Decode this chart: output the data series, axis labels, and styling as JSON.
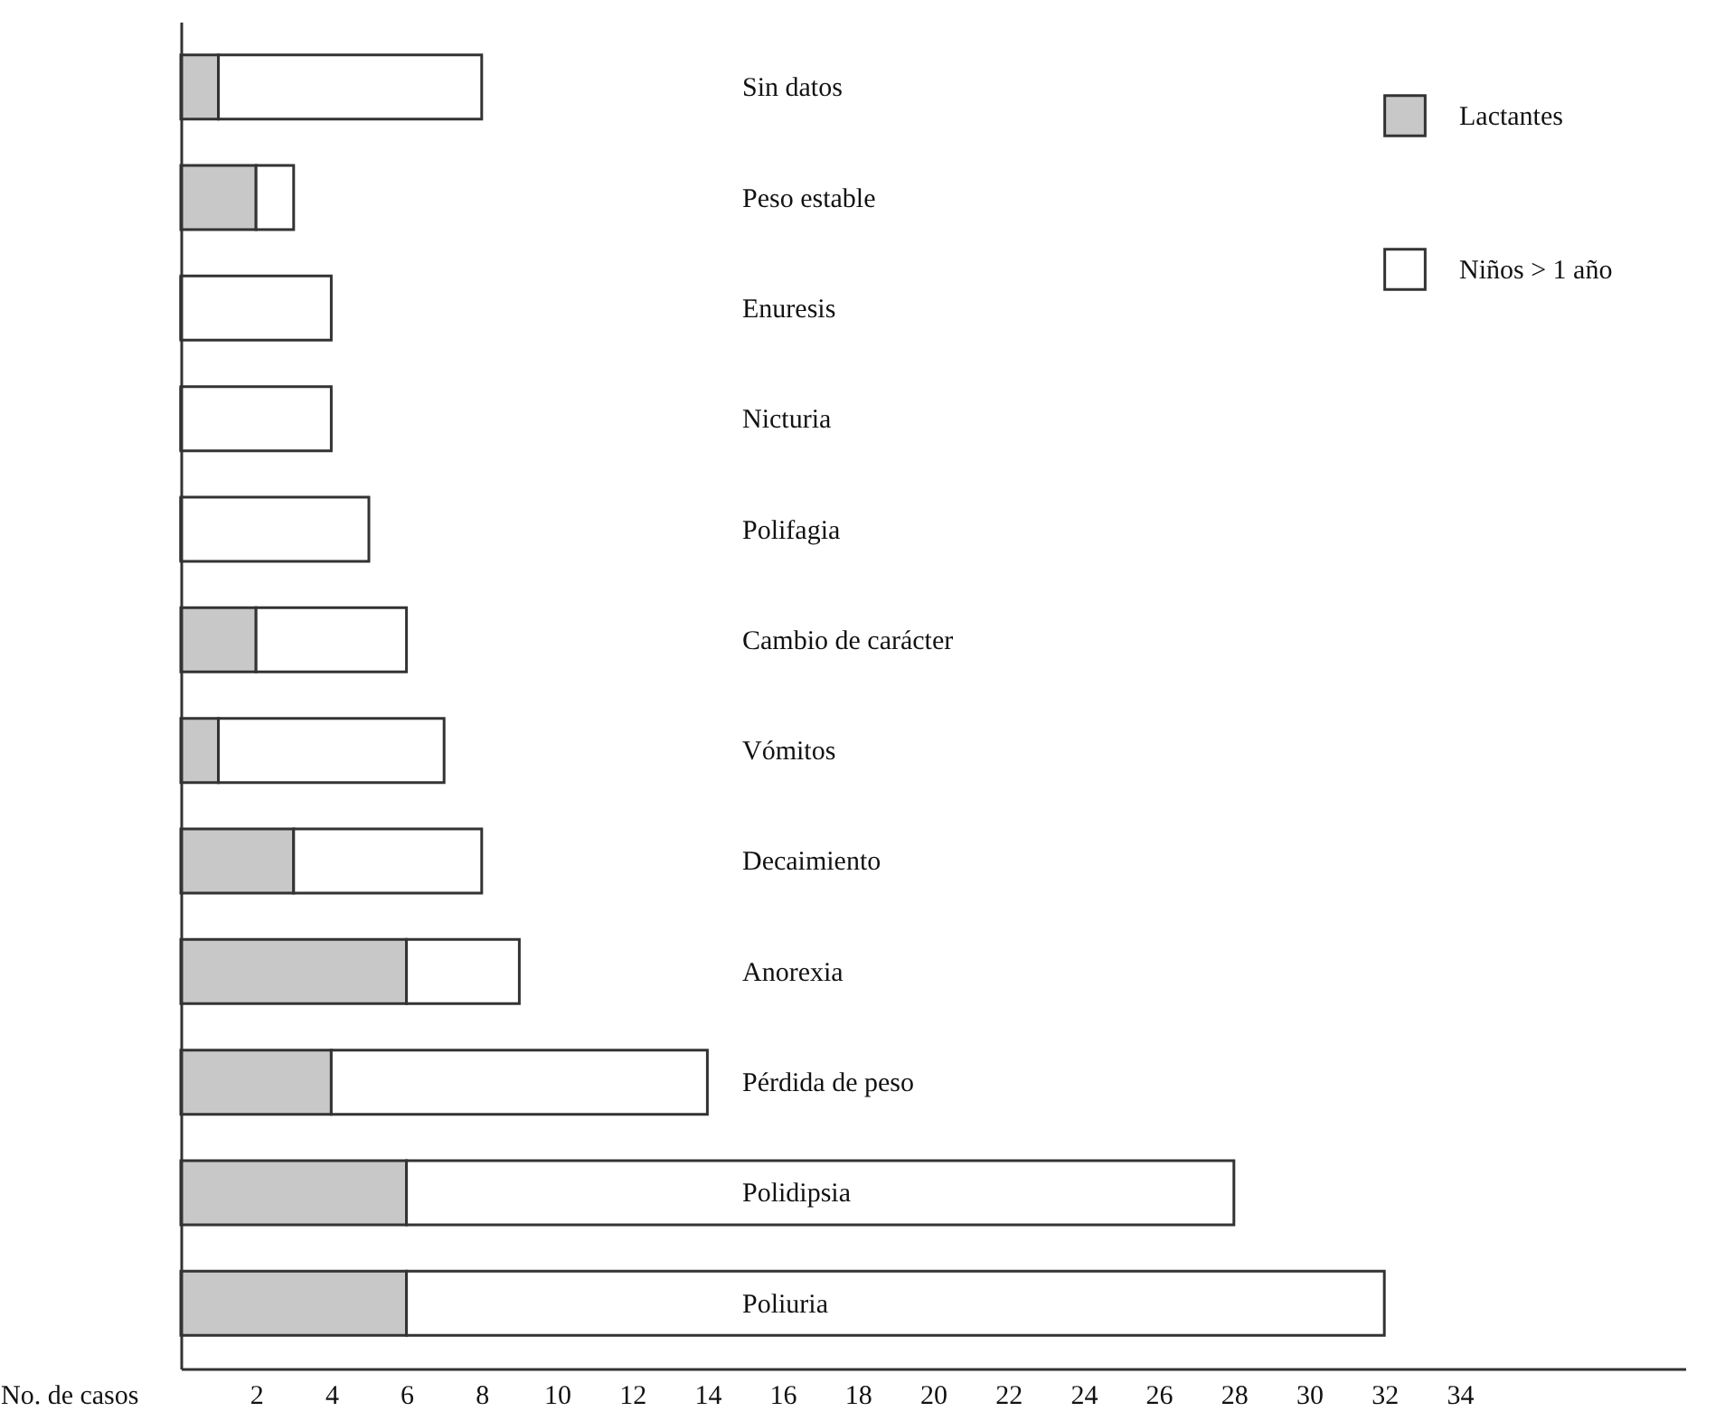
{
  "chart_data": {
    "type": "bar",
    "orientation": "horizontal",
    "stacked": true,
    "xlabel": "No. de casos",
    "categories": [
      "Sin datos",
      "Peso estable",
      "Enuresis",
      "Nicturia",
      "Polifagia",
      "Cambio de carácter",
      "Vómitos",
      "Decaimiento",
      "Anorexia",
      "Pérdida de peso",
      "Polidipsia",
      "Poliuria"
    ],
    "series": [
      {
        "name": "Lactantes",
        "color": "#c8c8c8",
        "values": [
          1,
          2,
          0,
          0,
          0,
          2,
          1,
          3,
          6,
          4,
          6,
          6
        ]
      },
      {
        "name": "Niños > 1 año",
        "color": "#ffffff",
        "values": [
          7,
          1,
          4,
          4,
          5,
          4,
          6,
          5,
          3,
          10,
          22,
          26
        ]
      }
    ],
    "xlim": [
      0,
      40
    ],
    "xticks": [
      2,
      4,
      6,
      8,
      10,
      12,
      14,
      16,
      18,
      20,
      22,
      24,
      26,
      28,
      30,
      32,
      34
    ],
    "grid": false,
    "legend": "top right"
  }
}
